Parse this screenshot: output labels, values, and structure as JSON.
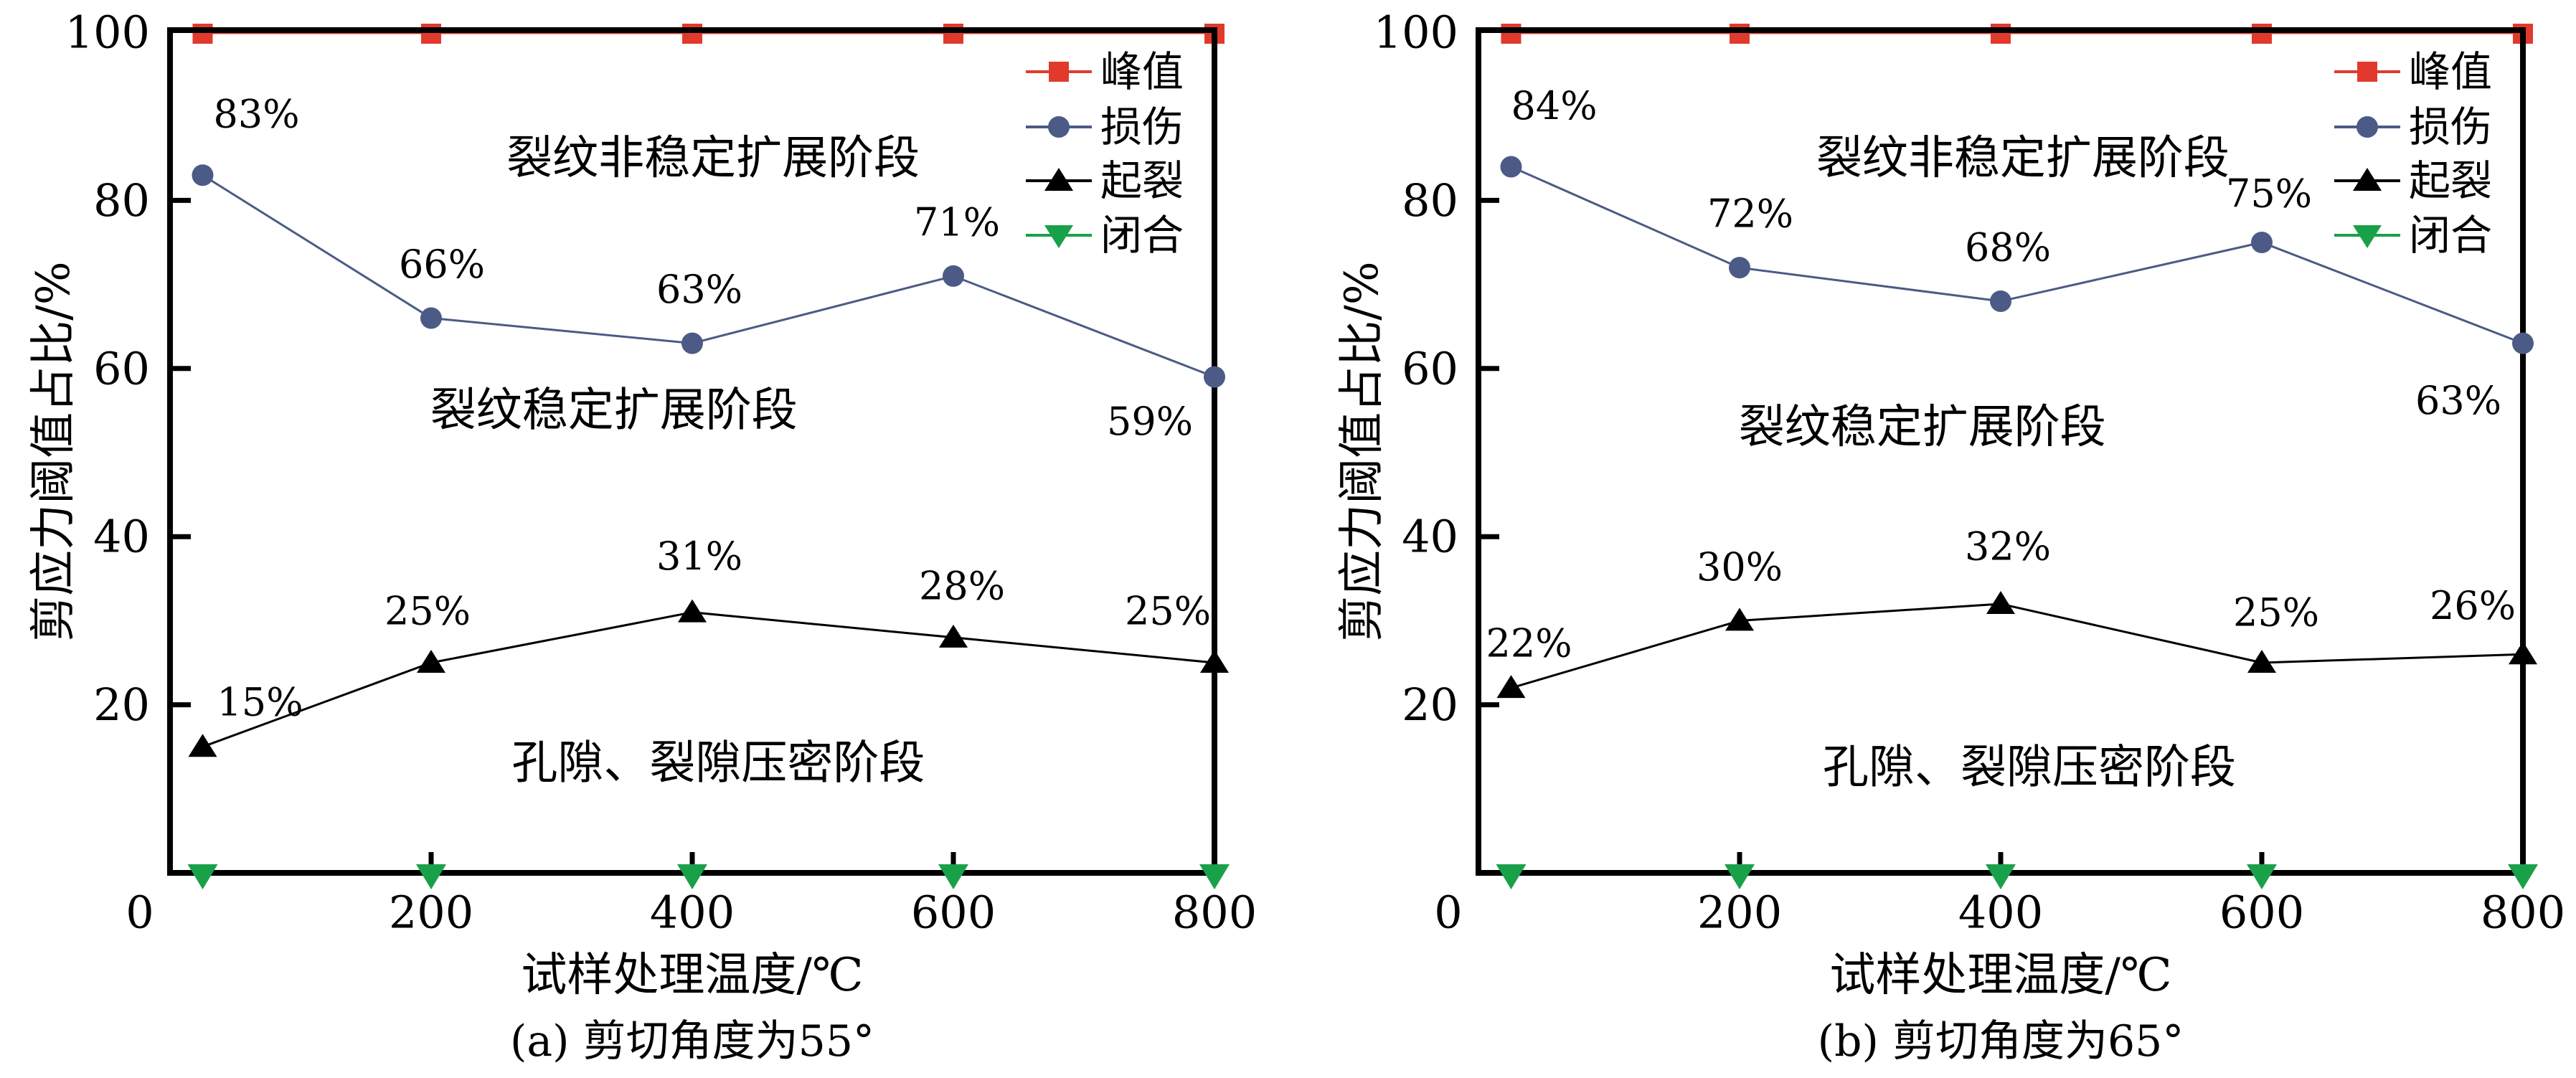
{
  "figure": {
    "background": "#ffffff",
    "colors": {
      "peak": "#e13a2d",
      "damage": "#4b5b85",
      "initiation": "#000000",
      "closure": "#19a14a",
      "axis": "#000000",
      "text": "#000000"
    },
    "legend_labels": [
      "峰值",
      "损伤",
      "起裂",
      "闭合"
    ]
  },
  "chart_data": [
    {
      "id": "a",
      "type": "line",
      "title": "(a) 剪切角度为55°",
      "xlabel": "试样处理温度/℃",
      "ylabel": "剪应力阈值占比/%",
      "xlim": [
        0,
        800
      ],
      "ylim": [
        0,
        100
      ],
      "xticks": [
        0,
        200,
        400,
        600,
        800
      ],
      "yticks": [
        20,
        40,
        60,
        80,
        100
      ],
      "grid": false,
      "legend_position": "top-right",
      "x": [
        25,
        200,
        400,
        600,
        800
      ],
      "series": [
        {
          "name": "峰值",
          "marker": "square",
          "color": "#e13a2d",
          "values": [
            100,
            100,
            100,
            100,
            100
          ],
          "labels": [
            "",
            "",
            "",
            "",
            ""
          ]
        },
        {
          "name": "损伤",
          "marker": "circle",
          "color": "#4b5b85",
          "values": [
            83,
            66,
            63,
            71,
            59
          ],
          "labels": [
            "83%",
            "66%",
            "63%",
            "71%",
            "59%"
          ]
        },
        {
          "name": "起裂",
          "marker": "triangle-up",
          "color": "#000000",
          "values": [
            15,
            25,
            31,
            28,
            25
          ],
          "labels": [
            "15%",
            "25%",
            "31%",
            "28%",
            "25%"
          ]
        },
        {
          "name": "闭合",
          "marker": "triangle-down",
          "color": "#19a14a",
          "values": [
            0,
            0,
            0,
            0,
            0
          ],
          "labels": [
            "",
            "",
            "",
            "",
            ""
          ]
        }
      ],
      "annotations": [
        {
          "text": "裂纹非稳定扩展阶段",
          "x": 416,
          "y": 85
        },
        {
          "text": "裂纹稳定扩展阶段",
          "x": 340,
          "y": 55
        },
        {
          "text": "孔隙、裂隙压密阶段",
          "x": 420,
          "y": 13
        }
      ]
    },
    {
      "id": "b",
      "type": "line",
      "title": "(b) 剪切角度为65°",
      "xlabel": "试样处理温度/℃",
      "ylabel": "剪应力阈值占比/%",
      "xlim": [
        0,
        800
      ],
      "ylim": [
        0,
        100
      ],
      "xticks": [
        0,
        200,
        400,
        600,
        800
      ],
      "yticks": [
        20,
        40,
        60,
        80,
        100
      ],
      "grid": false,
      "legend_position": "top-right",
      "x": [
        25,
        200,
        400,
        600,
        800
      ],
      "series": [
        {
          "name": "峰值",
          "marker": "square",
          "color": "#e13a2d",
          "values": [
            100,
            100,
            100,
            100,
            100
          ],
          "labels": [
            "",
            "",
            "",
            "",
            ""
          ]
        },
        {
          "name": "损伤",
          "marker": "circle",
          "color": "#4b5b85",
          "values": [
            84,
            72,
            68,
            75,
            63
          ],
          "labels": [
            "84%",
            "72%",
            "68%",
            "75%",
            "63%"
          ]
        },
        {
          "name": "起裂",
          "marker": "triangle-up",
          "color": "#000000",
          "values": [
            22,
            30,
            32,
            25,
            26
          ],
          "labels": [
            "22%",
            "30%",
            "32%",
            "25%",
            "26%"
          ]
        },
        {
          "name": "闭合",
          "marker": "triangle-down",
          "color": "#19a14a",
          "values": [
            0,
            0,
            0,
            0,
            0
          ],
          "labels": [
            "",
            "",
            "",
            "",
            ""
          ]
        }
      ],
      "annotations": [
        {
          "text": "裂纹非稳定扩展阶段",
          "x": 417,
          "y": 85
        },
        {
          "text": "裂纹稳定扩展阶段",
          "x": 340,
          "y": 53
        },
        {
          "text": "孔隙、裂隙压密阶段",
          "x": 422,
          "y": 12.5
        }
      ]
    }
  ]
}
